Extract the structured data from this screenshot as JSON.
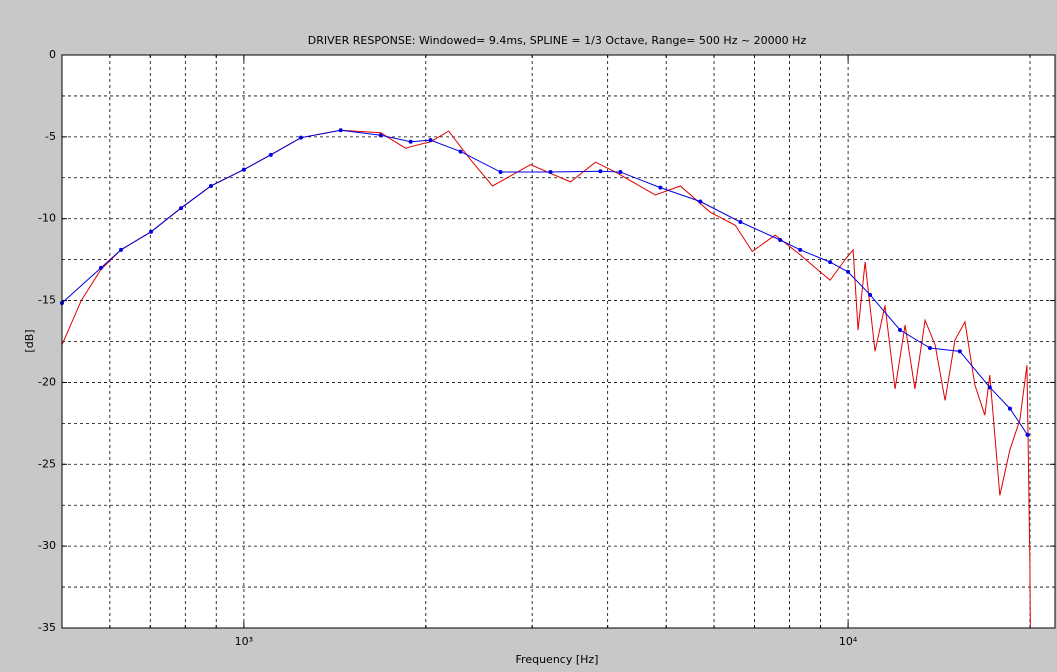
{
  "chart_data": {
    "type": "line",
    "title": "DRIVER RESPONSE: Windowed= 9.4ms, SPLINE = 1/3 Octave, Range= 500 Hz ~ 20000 Hz",
    "xlabel": "Frequency [Hz]",
    "ylabel": "[dB]",
    "xscale": "log",
    "xlim": [
      500,
      22000
    ],
    "ylim": [
      -35,
      0
    ],
    "xticks": [
      {
        "value": 1000,
        "label": "10³"
      },
      {
        "value": 10000,
        "label": "10⁴"
      }
    ],
    "xminorticks": [
      600,
      700,
      800,
      900,
      2000,
      3000,
      4000,
      5000,
      6000,
      7000,
      8000,
      9000,
      20000
    ],
    "yticks": [
      -35,
      -30,
      -25,
      -20,
      -15,
      -10,
      -5,
      0
    ],
    "yminorticks": [
      -32.5,
      -27.5,
      -22.5,
      -17.5,
      -12.5,
      -7.5,
      -2.5
    ],
    "grid": true,
    "series": [
      {
        "color": "#e00000",
        "marker": false,
        "x": [
          500,
          538,
          580,
          626,
          702,
          787,
          882,
          1000,
          1108,
          1243,
          1446,
          1684,
          1853,
          1888,
          2037,
          2182,
          2373,
          2579,
          2982,
          3471,
          3818,
          4120,
          4797,
          5277,
          5913,
          6506,
          6941,
          7574,
          8331,
          8989,
          9338,
          9886,
          10193,
          10387,
          10669,
          11081,
          11510,
          11960,
          12425,
          12900,
          13410,
          13930,
          14470,
          15030,
          15610,
          16210,
          16840,
          17160,
          17830,
          18530,
          19240,
          19770,
          19990,
          20030
        ],
        "values": [
          -17.7,
          -15.0,
          -13.1,
          -11.9,
          -10.8,
          -9.35,
          -8.0,
          -7.0,
          -6.1,
          -5.05,
          -4.6,
          -4.75,
          -5.7,
          -5.6,
          -5.3,
          -4.65,
          -6.4,
          -8.0,
          -6.7,
          -7.75,
          -6.55,
          -7.15,
          -8.55,
          -8.0,
          -9.6,
          -10.4,
          -12.0,
          -11.0,
          -12.2,
          -13.25,
          -13.75,
          -12.5,
          -11.9,
          -16.8,
          -12.65,
          -18.1,
          -15.3,
          -20.4,
          -16.5,
          -20.4,
          -16.2,
          -17.7,
          -21.1,
          -17.4,
          -16.3,
          -20.15,
          -22.0,
          -19.55,
          -26.9,
          -24.1,
          -22.3,
          -18.95,
          -30.85,
          -35
        ]
      },
      {
        "color": "#0000e0",
        "marker": true,
        "x": [
          500,
          580,
          626,
          702,
          787,
          882,
          1000,
          1108,
          1243,
          1446,
          1684,
          1888,
          2037,
          2284,
          2659,
          3217,
          3892,
          4199,
          4890,
          5693,
          6632,
          7720,
          8331,
          9338,
          10000,
          10874,
          12190,
          13660,
          15310,
          17160,
          18530,
          19810
        ],
        "values": [
          -15.15,
          -13.0,
          -11.9,
          -10.8,
          -9.35,
          -8.0,
          -7.0,
          -6.1,
          -5.05,
          -4.6,
          -4.9,
          -5.3,
          -5.2,
          -5.9,
          -7.15,
          -7.15,
          -7.1,
          -7.15,
          -8.1,
          -8.95,
          -10.2,
          -11.3,
          -11.9,
          -12.65,
          -13.25,
          -14.65,
          -16.8,
          -17.9,
          -18.1,
          -20.3,
          -21.6,
          -23.2
        ]
      }
    ]
  }
}
